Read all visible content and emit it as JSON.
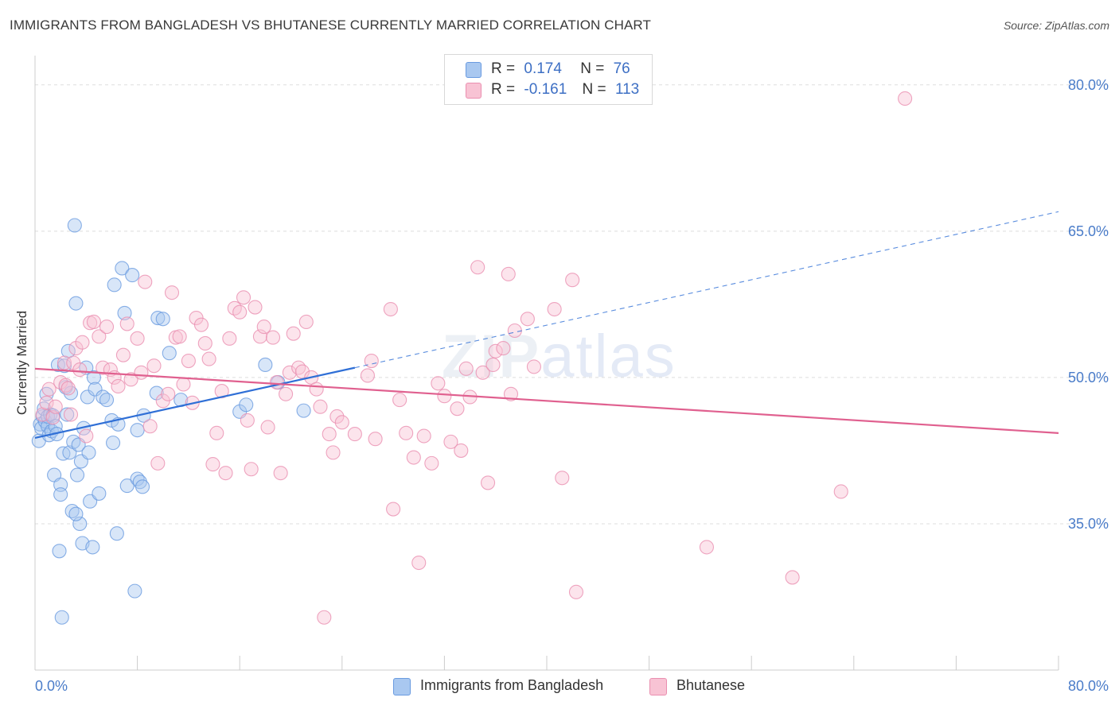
{
  "title": "IMMIGRANTS FROM BANGLADESH VS BHUTANESE CURRENTLY MARRIED CORRELATION CHART",
  "source": "Source: ZipAtlas.com",
  "watermark": {
    "zip": "ZIP",
    "atlas": "atlas"
  },
  "legend": {
    "rows": [
      {
        "r_label": "R =",
        "r_value": "0.174",
        "n_label": "N =",
        "n_value": "76",
        "color": "#a9c8f0",
        "edge": "#6a9be0"
      },
      {
        "r_label": "R =",
        "r_value": "-0.161",
        "n_label": "N =",
        "n_value": "113",
        "color": "#f8c3d4",
        "edge": "#ea8fb0"
      }
    ]
  },
  "bottom_legend": [
    {
      "label": "Immigrants from Bangladesh",
      "color": "#a9c8f0",
      "edge": "#6a9be0"
    },
    {
      "label": "Bhutanese",
      "color": "#f8c3d4",
      "edge": "#ea8fb0"
    }
  ],
  "chart_data": {
    "type": "scatter",
    "title": "IMMIGRANTS FROM BANGLADESH VS BHUTANESE CURRENTLY MARRIED CORRELATION CHART",
    "xlabel": "",
    "ylabel": "Currently Married",
    "xlim": [
      0,
      80
    ],
    "ylim": [
      20,
      83
    ],
    "x_tick_labels": [
      "0.0%",
      "80.0%"
    ],
    "y_ticks": [
      35,
      50,
      65,
      80
    ],
    "y_tick_labels": [
      "35.0%",
      "50.0%",
      "65.0%",
      "80.0%"
    ],
    "grid": true,
    "series": [
      {
        "name": "Immigrants from Bangladesh",
        "color": "#6a9be0",
        "fill": "#a9c8f0",
        "trend": {
          "x": [
            0,
            25
          ],
          "y": [
            43.8,
            51.0
          ],
          "dashed_to": [
            80,
            67.0
          ]
        },
        "points": [
          [
            0.3,
            43.5
          ],
          [
            0.4,
            45.2
          ],
          [
            0.5,
            44.8
          ],
          [
            0.6,
            46.0
          ],
          [
            0.7,
            46.8
          ],
          [
            0.8,
            45.5
          ],
          [
            0.9,
            48.3
          ],
          [
            1.0,
            45.0
          ],
          [
            1.0,
            46.0
          ],
          [
            1.1,
            44.1
          ],
          [
            1.2,
            46.2
          ],
          [
            1.3,
            44.5
          ],
          [
            1.4,
            46.1
          ],
          [
            1.5,
            40.0
          ],
          [
            1.6,
            45.0
          ],
          [
            1.7,
            44.2
          ],
          [
            1.8,
            51.3
          ],
          [
            1.9,
            32.2
          ],
          [
            2.0,
            39.0
          ],
          [
            2.1,
            25.4
          ],
          [
            2.2,
            42.2
          ],
          [
            2.3,
            51.2
          ],
          [
            2.4,
            49.0
          ],
          [
            2.5,
            46.2
          ],
          [
            2.6,
            52.7
          ],
          [
            2.7,
            42.3
          ],
          [
            2.8,
            48.4
          ],
          [
            2.9,
            36.3
          ],
          [
            3.0,
            43.4
          ],
          [
            3.1,
            65.6
          ],
          [
            3.2,
            57.6
          ],
          [
            3.3,
            40.0
          ],
          [
            3.4,
            43.1
          ],
          [
            3.5,
            35.0
          ],
          [
            3.6,
            41.4
          ],
          [
            3.7,
            33.0
          ],
          [
            3.8,
            44.8
          ],
          [
            4.0,
            51.0
          ],
          [
            4.1,
            48.0
          ],
          [
            4.2,
            42.3
          ],
          [
            4.3,
            37.3
          ],
          [
            4.5,
            32.6
          ],
          [
            4.6,
            50.0
          ],
          [
            4.7,
            48.8
          ],
          [
            5.0,
            38.1
          ],
          [
            5.3,
            48.0
          ],
          [
            5.6,
            47.7
          ],
          [
            6.0,
            45.6
          ],
          [
            6.1,
            43.3
          ],
          [
            6.2,
            59.5
          ],
          [
            6.4,
            34.0
          ],
          [
            6.5,
            45.2
          ],
          [
            6.8,
            61.2
          ],
          [
            7.0,
            56.6
          ],
          [
            7.2,
            38.9
          ],
          [
            7.6,
            60.5
          ],
          [
            7.8,
            28.1
          ],
          [
            8.0,
            39.6
          ],
          [
            8.2,
            39.3
          ],
          [
            8.4,
            38.8
          ],
          [
            8.0,
            44.6
          ],
          [
            8.5,
            46.1
          ],
          [
            9.5,
            48.4
          ],
          [
            9.6,
            56.1
          ],
          [
            10.0,
            56.0
          ],
          [
            10.5,
            52.5
          ],
          [
            11.4,
            47.7
          ],
          [
            16.0,
            46.5
          ],
          [
            16.5,
            47.2
          ],
          [
            18.0,
            51.3
          ],
          [
            19.0,
            49.5
          ],
          [
            21.0,
            46.6
          ],
          [
            2.0,
            38.0
          ],
          [
            3.2,
            36.0
          ]
        ]
      },
      {
        "name": "Bhutanese",
        "color": "#ea8fb0",
        "fill": "#f8c3d4",
        "trend": {
          "x": [
            0,
            80
          ],
          "y": [
            50.9,
            44.3
          ]
        },
        "points": [
          [
            0.6,
            46.2
          ],
          [
            0.9,
            47.4
          ],
          [
            1.1,
            48.8
          ],
          [
            1.4,
            45.9
          ],
          [
            1.6,
            47.0
          ],
          [
            2.0,
            49.5
          ],
          [
            2.3,
            51.5
          ],
          [
            2.4,
            49.2
          ],
          [
            2.6,
            48.9
          ],
          [
            2.8,
            46.2
          ],
          [
            3.0,
            51.5
          ],
          [
            3.2,
            53.0
          ],
          [
            3.5,
            50.8
          ],
          [
            3.7,
            53.6
          ],
          [
            4.0,
            44.0
          ],
          [
            4.3,
            55.6
          ],
          [
            4.6,
            55.7
          ],
          [
            5.0,
            54.2
          ],
          [
            5.3,
            51.0
          ],
          [
            5.6,
            55.2
          ],
          [
            5.9,
            50.8
          ],
          [
            6.2,
            50.0
          ],
          [
            6.5,
            49.1
          ],
          [
            6.9,
            52.3
          ],
          [
            7.2,
            55.5
          ],
          [
            7.5,
            49.8
          ],
          [
            8.0,
            54.0
          ],
          [
            8.3,
            50.5
          ],
          [
            8.6,
            59.8
          ],
          [
            9.0,
            45.0
          ],
          [
            9.3,
            51.2
          ],
          [
            9.6,
            41.2
          ],
          [
            10.0,
            47.6
          ],
          [
            10.4,
            48.3
          ],
          [
            10.7,
            58.7
          ],
          [
            11.0,
            54.1
          ],
          [
            11.3,
            54.2
          ],
          [
            11.6,
            49.3
          ],
          [
            12.0,
            51.7
          ],
          [
            12.3,
            47.4
          ],
          [
            12.6,
            56.1
          ],
          [
            13.0,
            55.4
          ],
          [
            13.3,
            53.5
          ],
          [
            13.6,
            51.9
          ],
          [
            13.9,
            41.1
          ],
          [
            14.2,
            44.3
          ],
          [
            14.6,
            48.6
          ],
          [
            14.9,
            40.2
          ],
          [
            15.2,
            54.0
          ],
          [
            15.6,
            57.1
          ],
          [
            16.0,
            56.7
          ],
          [
            16.3,
            58.2
          ],
          [
            16.6,
            45.6
          ],
          [
            16.9,
            40.6
          ],
          [
            17.2,
            57.2
          ],
          [
            17.6,
            54.2
          ],
          [
            17.9,
            55.2
          ],
          [
            18.2,
            44.9
          ],
          [
            18.6,
            54.1
          ],
          [
            18.9,
            49.5
          ],
          [
            19.2,
            40.2
          ],
          [
            19.6,
            48.3
          ],
          [
            19.9,
            50.5
          ],
          [
            20.2,
            54.5
          ],
          [
            20.6,
            51.0
          ],
          [
            20.9,
            50.6
          ],
          [
            21.2,
            55.7
          ],
          [
            21.6,
            50.0
          ],
          [
            22.0,
            48.8
          ],
          [
            22.3,
            47.0
          ],
          [
            22.6,
            25.4
          ],
          [
            23.0,
            44.2
          ],
          [
            23.3,
            42.3
          ],
          [
            23.6,
            46.0
          ],
          [
            24.0,
            45.4
          ],
          [
            25.0,
            44.2
          ],
          [
            26.0,
            50.2
          ],
          [
            26.3,
            51.7
          ],
          [
            26.6,
            43.7
          ],
          [
            27.8,
            57.0
          ],
          [
            28.0,
            36.5
          ],
          [
            28.5,
            47.7
          ],
          [
            29.0,
            44.3
          ],
          [
            29.6,
            41.8
          ],
          [
            30.0,
            31.0
          ],
          [
            30.4,
            44.0
          ],
          [
            31.0,
            41.2
          ],
          [
            31.5,
            49.4
          ],
          [
            32.0,
            48.1
          ],
          [
            32.5,
            43.4
          ],
          [
            33.0,
            46.8
          ],
          [
            33.3,
            42.5
          ],
          [
            33.7,
            50.9
          ],
          [
            34.0,
            48.0
          ],
          [
            34.6,
            61.3
          ],
          [
            35.0,
            50.5
          ],
          [
            35.4,
            39.2
          ],
          [
            36.0,
            52.7
          ],
          [
            36.6,
            53.0
          ],
          [
            37.0,
            60.6
          ],
          [
            37.2,
            48.3
          ],
          [
            37.5,
            54.8
          ],
          [
            38.5,
            56.0
          ],
          [
            39.0,
            51.1
          ],
          [
            40.6,
            57.0
          ],
          [
            41.2,
            39.7
          ],
          [
            42.0,
            60.0
          ],
          [
            42.3,
            28.0
          ],
          [
            52.5,
            32.6
          ],
          [
            59.2,
            29.5
          ],
          [
            63.0,
            38.3
          ],
          [
            68.0,
            78.6
          ],
          [
            35.8,
            51.3
          ]
        ]
      }
    ]
  }
}
